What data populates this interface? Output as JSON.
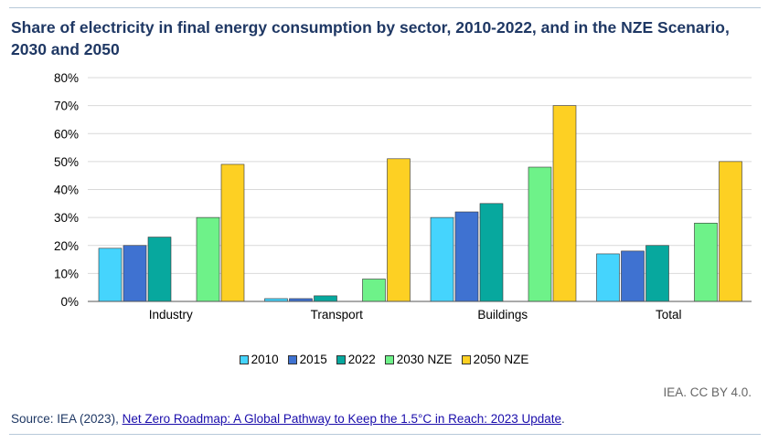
{
  "title": "Share of electricity in final energy consumption by sector, 2010-2022, and in the NZE Scenario, 2030 and 2050",
  "credit": "IEA. CC BY 4.0.",
  "source": {
    "prefix": "Source: IEA (2023), ",
    "link_text": "Net Zero Roadmap: A Global Pathway to Keep the 1.5°C in Reach: 2023 Update",
    "suffix": "."
  },
  "chart_data": {
    "type": "bar",
    "title": "Share of electricity in final energy consumption by sector, 2010-2022, and in the NZE Scenario, 2030 and 2050",
    "xlabel": "",
    "ylabel": "",
    "ylim": [
      0,
      80
    ],
    "y_ticks": [
      "0%",
      "10%",
      "20%",
      "30%",
      "40%",
      "50%",
      "60%",
      "70%",
      "80%"
    ],
    "grid": true,
    "legend_position": "bottom",
    "categories": [
      "Industry",
      "Transport",
      "Buildings",
      "Total"
    ],
    "series": [
      {
        "name": "2010",
        "color": "#45d4fd",
        "values": [
          19,
          1,
          30,
          17
        ]
      },
      {
        "name": "2015",
        "color": "#3f72d1",
        "values": [
          20,
          1,
          32,
          18
        ]
      },
      {
        "name": "2022",
        "color": "#07a89e",
        "values": [
          23,
          2,
          35,
          20
        ]
      },
      {
        "name": "2030 NZE",
        "color": "#6ef289",
        "values": [
          30,
          8,
          48,
          28
        ]
      },
      {
        "name": "2050 NZE",
        "color": "#fdd023",
        "values": [
          49,
          51,
          70,
          50
        ]
      }
    ]
  }
}
